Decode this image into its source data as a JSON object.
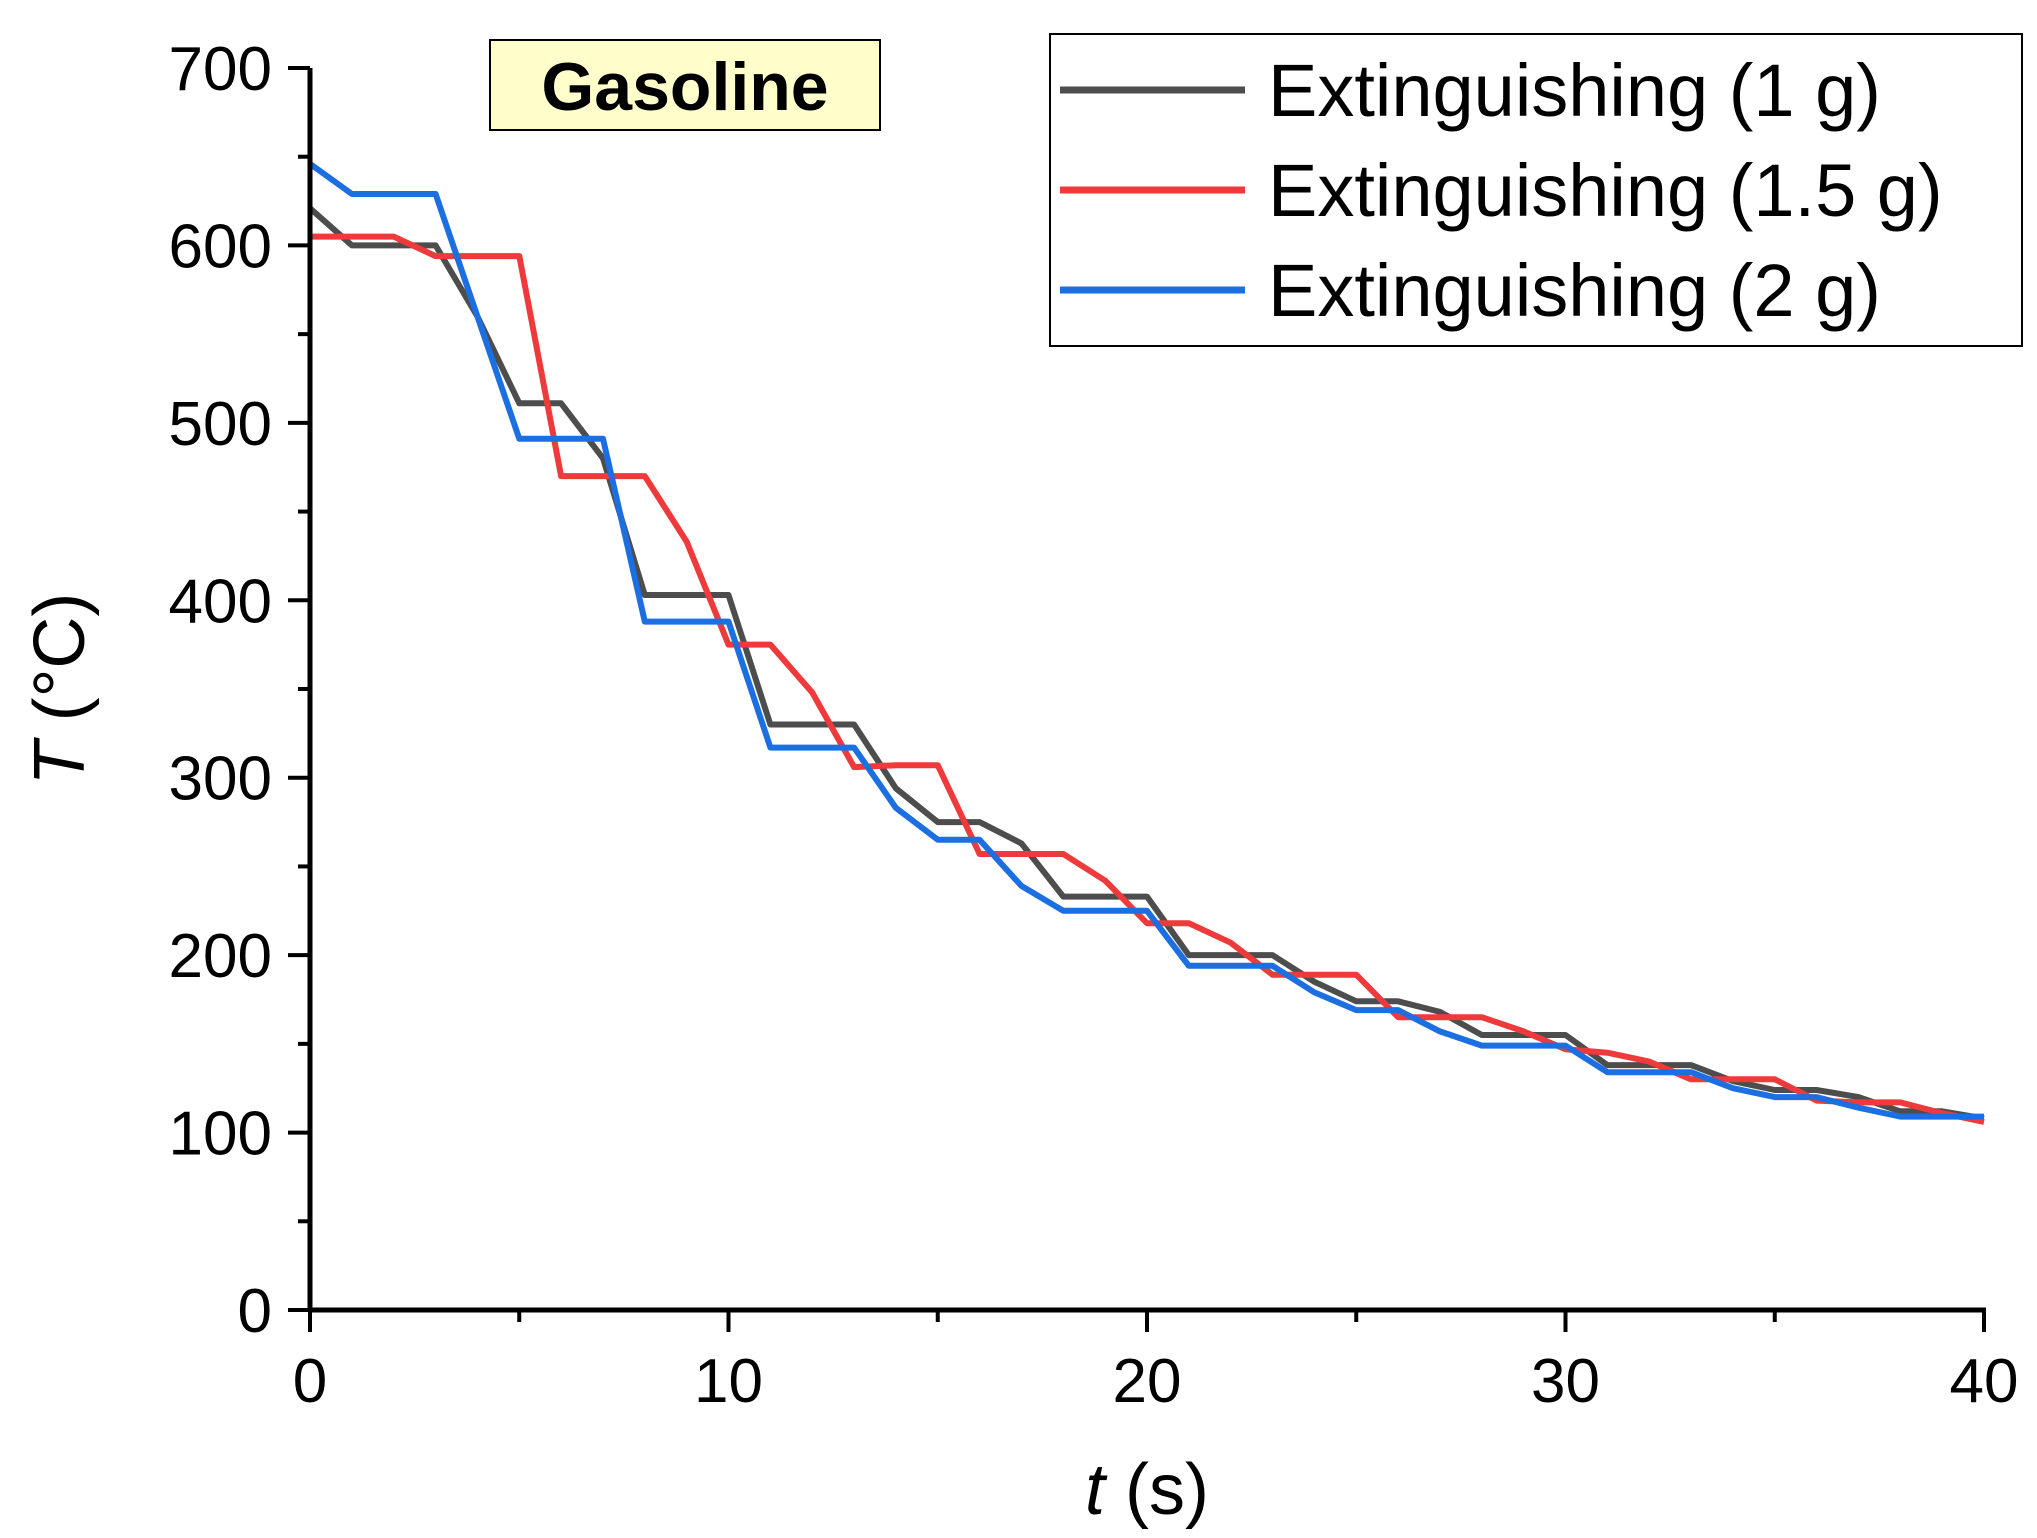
{
  "chart_data": {
    "type": "line",
    "title": "",
    "annotation": "Gasoline",
    "annotation_bg": "#ffffcc",
    "xlabel_var": "t",
    "xlabel_unit": " (s)",
    "ylabel_var": "T",
    "ylabel_unit": " (°C)",
    "xlim": [
      0,
      40
    ],
    "ylim": [
      0,
      700
    ],
    "xticks": [
      0,
      10,
      20,
      30,
      40
    ],
    "yticks": [
      0,
      100,
      200,
      300,
      400,
      500,
      600,
      700
    ],
    "xtick_labels": [
      "0",
      "10",
      "20",
      "30",
      "40"
    ],
    "ytick_labels": [
      "0",
      "100",
      "200",
      "300",
      "400",
      "500",
      "600",
      "700"
    ],
    "grid": false,
    "legend_position": "top-right",
    "series": [
      {
        "name": "Extinguishing (1 g)",
        "color": "#4d4d4d",
        "points": [
          [
            0,
            621
          ],
          [
            1,
            600
          ],
          [
            2,
            600
          ],
          [
            3,
            600
          ],
          [
            4,
            560
          ],
          [
            5,
            511
          ],
          [
            6,
            511
          ],
          [
            7,
            480
          ],
          [
            8,
            403
          ],
          [
            9,
            403
          ],
          [
            10,
            403
          ],
          [
            11,
            330
          ],
          [
            12,
            330
          ],
          [
            13,
            330
          ],
          [
            14,
            294
          ],
          [
            15,
            275
          ],
          [
            16,
            275
          ],
          [
            17,
            263
          ],
          [
            18,
            233
          ],
          [
            19,
            233
          ],
          [
            20,
            233
          ],
          [
            21,
            200
          ],
          [
            22,
            200
          ],
          [
            23,
            200
          ],
          [
            24,
            185
          ],
          [
            25,
            174
          ],
          [
            26,
            174
          ],
          [
            27,
            168
          ],
          [
            28,
            155
          ],
          [
            29,
            155
          ],
          [
            30,
            155
          ],
          [
            31,
            138
          ],
          [
            32,
            138
          ],
          [
            33,
            138
          ],
          [
            34,
            129
          ],
          [
            35,
            124
          ],
          [
            36,
            124
          ],
          [
            37,
            120
          ],
          [
            38,
            112
          ],
          [
            39,
            112
          ],
          [
            40,
            108
          ]
        ]
      },
      {
        "name": "Extinguishing (1.5 g)",
        "color": "#ee3a3a",
        "points": [
          [
            0,
            605
          ],
          [
            1,
            605
          ],
          [
            2,
            605
          ],
          [
            3,
            594
          ],
          [
            4,
            594
          ],
          [
            5,
            594
          ],
          [
            6,
            470
          ],
          [
            7,
            470
          ],
          [
            8,
            470
          ],
          [
            9,
            433
          ],
          [
            10,
            375
          ],
          [
            11,
            375
          ],
          [
            12,
            348
          ],
          [
            13,
            306
          ],
          [
            14,
            307
          ],
          [
            15,
            307
          ],
          [
            16,
            257
          ],
          [
            17,
            257
          ],
          [
            18,
            257
          ],
          [
            19,
            242
          ],
          [
            20,
            218
          ],
          [
            21,
            218
          ],
          [
            22,
            207
          ],
          [
            23,
            189
          ],
          [
            24,
            189
          ],
          [
            25,
            189
          ],
          [
            26,
            165
          ],
          [
            27,
            165
          ],
          [
            28,
            165
          ],
          [
            29,
            157
          ],
          [
            30,
            147
          ],
          [
            31,
            145
          ],
          [
            32,
            140
          ],
          [
            33,
            130
          ],
          [
            34,
            130
          ],
          [
            35,
            130
          ],
          [
            36,
            118
          ],
          [
            37,
            117
          ],
          [
            38,
            117
          ],
          [
            39,
            111
          ],
          [
            40,
            106
          ]
        ]
      },
      {
        "name": "Extinguishing (2 g)",
        "color": "#1c6fe0",
        "points": [
          [
            0,
            646
          ],
          [
            1,
            629
          ],
          [
            2,
            629
          ],
          [
            3,
            629
          ],
          [
            4,
            560
          ],
          [
            5,
            491
          ],
          [
            6,
            491
          ],
          [
            7,
            491
          ],
          [
            8,
            388
          ],
          [
            9,
            388
          ],
          [
            10,
            388
          ],
          [
            11,
            317
          ],
          [
            12,
            317
          ],
          [
            13,
            317
          ],
          [
            14,
            283
          ],
          [
            15,
            265
          ],
          [
            16,
            265
          ],
          [
            17,
            239
          ],
          [
            18,
            225
          ],
          [
            19,
            225
          ],
          [
            20,
            225
          ],
          [
            21,
            194
          ],
          [
            22,
            194
          ],
          [
            23,
            194
          ],
          [
            24,
            179
          ],
          [
            25,
            169
          ],
          [
            26,
            169
          ],
          [
            27,
            157
          ],
          [
            28,
            149
          ],
          [
            29,
            149
          ],
          [
            30,
            149
          ],
          [
            31,
            134
          ],
          [
            32,
            134
          ],
          [
            33,
            134
          ],
          [
            34,
            125
          ],
          [
            35,
            120
          ],
          [
            36,
            120
          ],
          [
            37,
            114
          ],
          [
            38,
            109
          ],
          [
            39,
            109
          ],
          [
            40,
            109
          ]
        ]
      }
    ]
  }
}
